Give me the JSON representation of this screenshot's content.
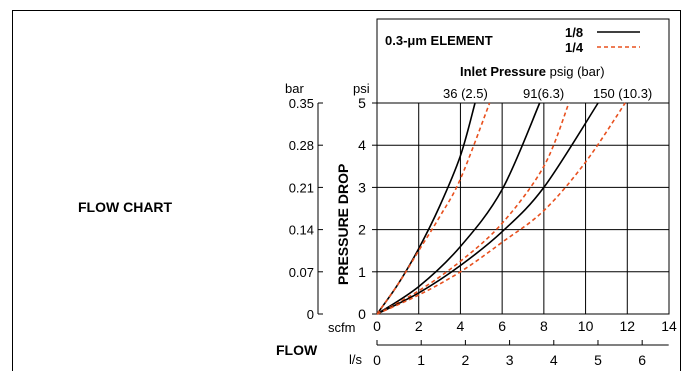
{
  "chart_data": {
    "type": "line",
    "heading": "FLOW CHART",
    "legend_title": "0.3-μm ELEMENT",
    "legend_items": [
      {
        "label": "1/8",
        "color": "#000000",
        "style": "solid"
      },
      {
        "label": "1/4",
        "color": "#e8501e",
        "style": "dashed"
      }
    ],
    "inlet_title_bold": "Inlet Pressure",
    "inlet_title_rest": " psig (bar)",
    "inlet_labels": [
      "36 (2.5)",
      "91(6.3)",
      "150 (10.3)"
    ],
    "ylabel": "PRESSURE DROP",
    "y_unit_psi": "psi",
    "y_unit_bar": "bar",
    "psi_ticks": [
      "0",
      "1",
      "2",
      "3",
      "4",
      "5"
    ],
    "bar_ticks": [
      "0",
      "0.07",
      "0.14",
      "0.21",
      "0.28",
      "0.35"
    ],
    "xlabel": "FLOW",
    "x_unit_scfm": "scfm",
    "x_unit_ls": "l/s",
    "scfm_ticks": [
      "0",
      "2",
      "4",
      "6",
      "8",
      "10",
      "12",
      "14"
    ],
    "ls_ticks": [
      "0",
      "1",
      "2",
      "3",
      "4",
      "5",
      "6"
    ],
    "xlim": [
      0,
      14
    ],
    "ylim": [
      0,
      5
    ],
    "series": [
      {
        "name": "1/8",
        "inlet": "36 (2.5)",
        "color": "#000000",
        "dashed": false,
        "x": [
          0,
          1,
          2,
          3,
          4,
          4.7
        ],
        "y": [
          0,
          0.7,
          1.55,
          2.55,
          3.75,
          5
        ]
      },
      {
        "name": "1/4",
        "inlet": "36 (2.5)",
        "color": "#e8501e",
        "dashed": true,
        "x": [
          0,
          1,
          2,
          3,
          4,
          5.4
        ],
        "y": [
          0,
          0.7,
          1.5,
          2.3,
          3.2,
          5
        ]
      },
      {
        "name": "1/8",
        "inlet": "91(6.3)",
        "color": "#000000",
        "dashed": false,
        "x": [
          0,
          2,
          4,
          6,
          7.8
        ],
        "y": [
          0,
          0.65,
          1.6,
          2.95,
          5
        ]
      },
      {
        "name": "1/4",
        "inlet": "91(6.3)",
        "color": "#e8501e",
        "dashed": true,
        "x": [
          0,
          2,
          4,
          6,
          8,
          9.2
        ],
        "y": [
          0,
          0.55,
          1.25,
          2.15,
          3.5,
          5
        ]
      },
      {
        "name": "1/8",
        "inlet": "150 (10.3)",
        "color": "#000000",
        "dashed": false,
        "x": [
          0,
          2,
          4,
          6,
          8,
          10.6
        ],
        "y": [
          0,
          0.5,
          1.15,
          1.95,
          3,
          5
        ]
      },
      {
        "name": "1/4",
        "inlet": "150 (10.3)",
        "color": "#e8501e",
        "dashed": true,
        "x": [
          0,
          2,
          4,
          6,
          8,
          10,
          11.9
        ],
        "y": [
          0,
          0.45,
          1.0,
          1.7,
          2.45,
          3.6,
          5
        ]
      }
    ]
  }
}
